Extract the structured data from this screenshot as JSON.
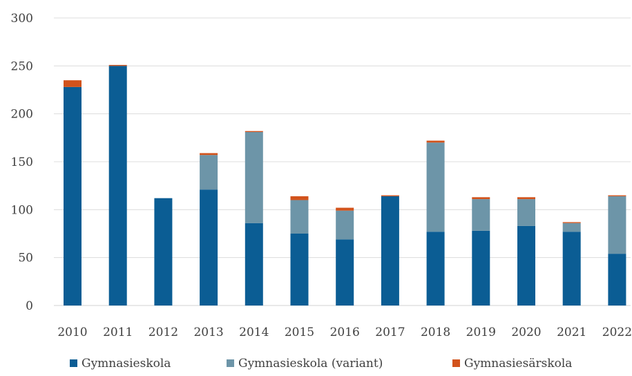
{
  "chart_data": {
    "type": "bar",
    "stacked": true,
    "categories": [
      "2010",
      "2011",
      "2012",
      "2013",
      "2014",
      "2015",
      "2016",
      "2017",
      "2018",
      "2019",
      "2020",
      "2021",
      "2022"
    ],
    "series": [
      {
        "name": "Gymnasieskola",
        "color": "#0b5d94",
        "values": [
          228,
          250,
          112,
          121,
          86,
          75,
          69,
          114,
          77,
          78,
          83,
          77,
          54
        ]
      },
      {
        "name": "Gymnasieskola (variant)",
        "color": "#6d95a8",
        "values": [
          0,
          0,
          0,
          36,
          95,
          35,
          30,
          0,
          93,
          33,
          28,
          9,
          60
        ]
      },
      {
        "name": "Gymnasiesärskola",
        "color": "#d2531c",
        "values": [
          7,
          1,
          0,
          2,
          1,
          4,
          3,
          1,
          2,
          2,
          2,
          1,
          1
        ]
      }
    ],
    "yticks": [
      0,
      50,
      100,
      150,
      200,
      250,
      300
    ],
    "ylim": [
      0,
      300
    ],
    "title": "",
    "xlabel": "",
    "ylabel": "",
    "grid": true,
    "legend_position": "bottom"
  }
}
